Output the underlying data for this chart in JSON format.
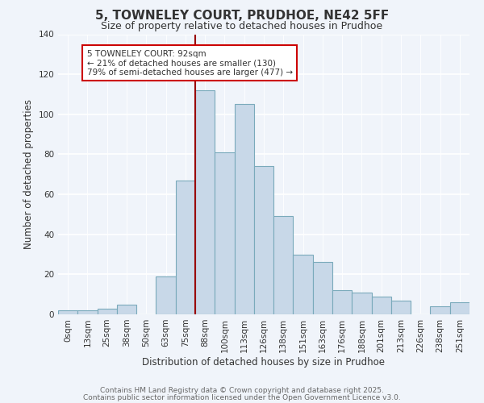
{
  "title": "5, TOWNELEY COURT, PRUDHOE, NE42 5FF",
  "subtitle": "Size of property relative to detached houses in Prudhoe",
  "xlabel": "Distribution of detached houses by size in Prudhoe",
  "ylabel": "Number of detached properties",
  "bar_labels": [
    "0sqm",
    "13sqm",
    "25sqm",
    "38sqm",
    "50sqm",
    "63sqm",
    "75sqm",
    "88sqm",
    "100sqm",
    "113sqm",
    "126sqm",
    "138sqm",
    "151sqm",
    "163sqm",
    "176sqm",
    "188sqm",
    "201sqm",
    "213sqm",
    "226sqm",
    "238sqm",
    "251sqm"
  ],
  "bar_values": [
    2,
    2,
    3,
    5,
    0,
    19,
    67,
    112,
    81,
    105,
    74,
    49,
    30,
    26,
    12,
    11,
    9,
    7,
    0,
    4,
    6
  ],
  "bar_color": "#c8d8e8",
  "bar_edge_color": "#7aaabb",
  "annotation_line_color": "#990000",
  "annotation_box_text_line1": "5 TOWNELEY COURT: 92sqm",
  "annotation_box_text_line2": "← 21% of detached houses are smaller (130)",
  "annotation_box_text_line3": "79% of semi-detached houses are larger (477) →",
  "annotation_box_color": "#ffffff",
  "annotation_box_edge_color": "#cc0000",
  "ylim": [
    0,
    140
  ],
  "yticks": [
    0,
    20,
    40,
    60,
    80,
    100,
    120,
    140
  ],
  "footer_line1": "Contains HM Land Registry data © Crown copyright and database right 2025.",
  "footer_line2": "Contains public sector information licensed under the Open Government Licence v3.0.",
  "background_color": "#f0f4fa",
  "grid_color": "#ffffff",
  "title_fontsize": 11,
  "subtitle_fontsize": 9,
  "axis_label_fontsize": 8.5,
  "tick_fontsize": 7.5,
  "annotation_fontsize": 7.5,
  "footer_fontsize": 6.5
}
